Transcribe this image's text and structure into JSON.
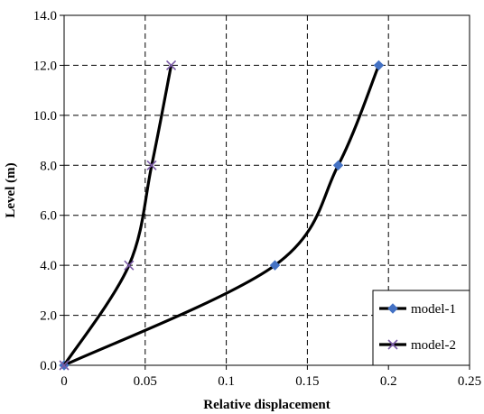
{
  "chart_data": {
    "type": "line",
    "xlabel": "Relative displacement",
    "ylabel": "Level (m)",
    "xlim": [
      0,
      0.25
    ],
    "ylim": [
      0,
      14
    ],
    "x_ticks": [
      "0",
      "0.05",
      "0.1",
      "0.15",
      "0.2",
      "0.25"
    ],
    "y_ticks": [
      "0.0",
      "2.0",
      "4.0",
      "6.0",
      "8.0",
      "10.0",
      "12.0",
      "14.0"
    ],
    "grid": true,
    "legend_position": "bottom-right",
    "series": [
      {
        "name": "model-1",
        "marker": "diamond",
        "marker_color": "#4472C4",
        "line_color": "#000000",
        "points": [
          [
            0,
            0
          ],
          [
            0.13,
            4
          ],
          [
            0.169,
            8
          ],
          [
            0.194,
            12
          ]
        ]
      },
      {
        "name": "model-2",
        "marker": "x",
        "marker_color": "#7B5BA6",
        "line_color": "#000000",
        "points": [
          [
            0,
            0
          ],
          [
            0.04,
            4
          ],
          [
            0.054,
            8
          ],
          [
            0.066,
            12
          ]
        ]
      }
    ]
  }
}
